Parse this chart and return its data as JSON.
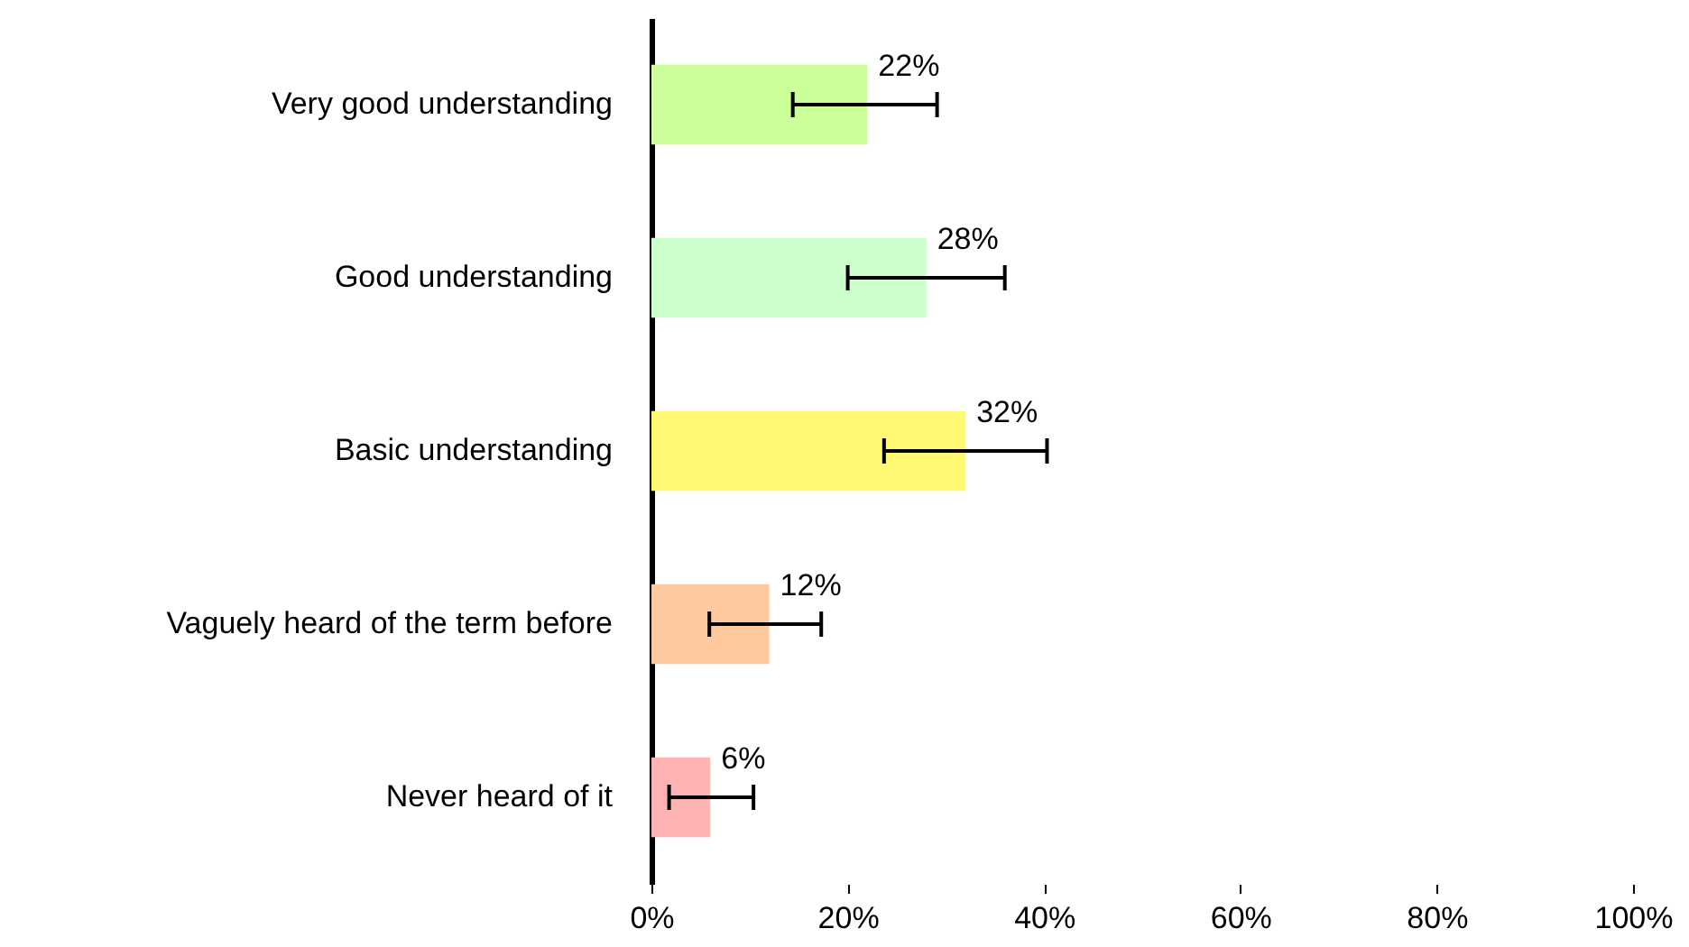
{
  "chart_data": {
    "type": "bar",
    "orientation": "horizontal",
    "categories": [
      "Very good understanding",
      "Good understanding",
      "Basic understanding",
      "Vaguely heard of the term before",
      "Never heard of it"
    ],
    "values": [
      22,
      28,
      32,
      12,
      6
    ],
    "colors": [
      "#ccff99",
      "#ccffcc",
      "#fff870",
      "#ffc9a0",
      "#ffb3b3"
    ],
    "errors": [
      [
        14.4,
        29.1
      ],
      [
        20.0,
        36.0
      ],
      [
        23.7,
        40.3
      ],
      [
        5.9,
        17.3
      ],
      [
        1.8,
        10.4
      ]
    ],
    "value_labels": [
      "22%",
      "28%",
      "32%",
      "12%",
      "6%"
    ],
    "xlim": [
      0,
      100
    ],
    "xticks": [
      {
        "value": 0,
        "label": "0%"
      },
      {
        "value": 20,
        "label": "20%"
      },
      {
        "value": 40,
        "label": "40%"
      },
      {
        "value": 60,
        "label": "60%"
      },
      {
        "value": 80,
        "label": "80%"
      },
      {
        "value": 100,
        "label": "100%"
      }
    ],
    "grid": false
  }
}
